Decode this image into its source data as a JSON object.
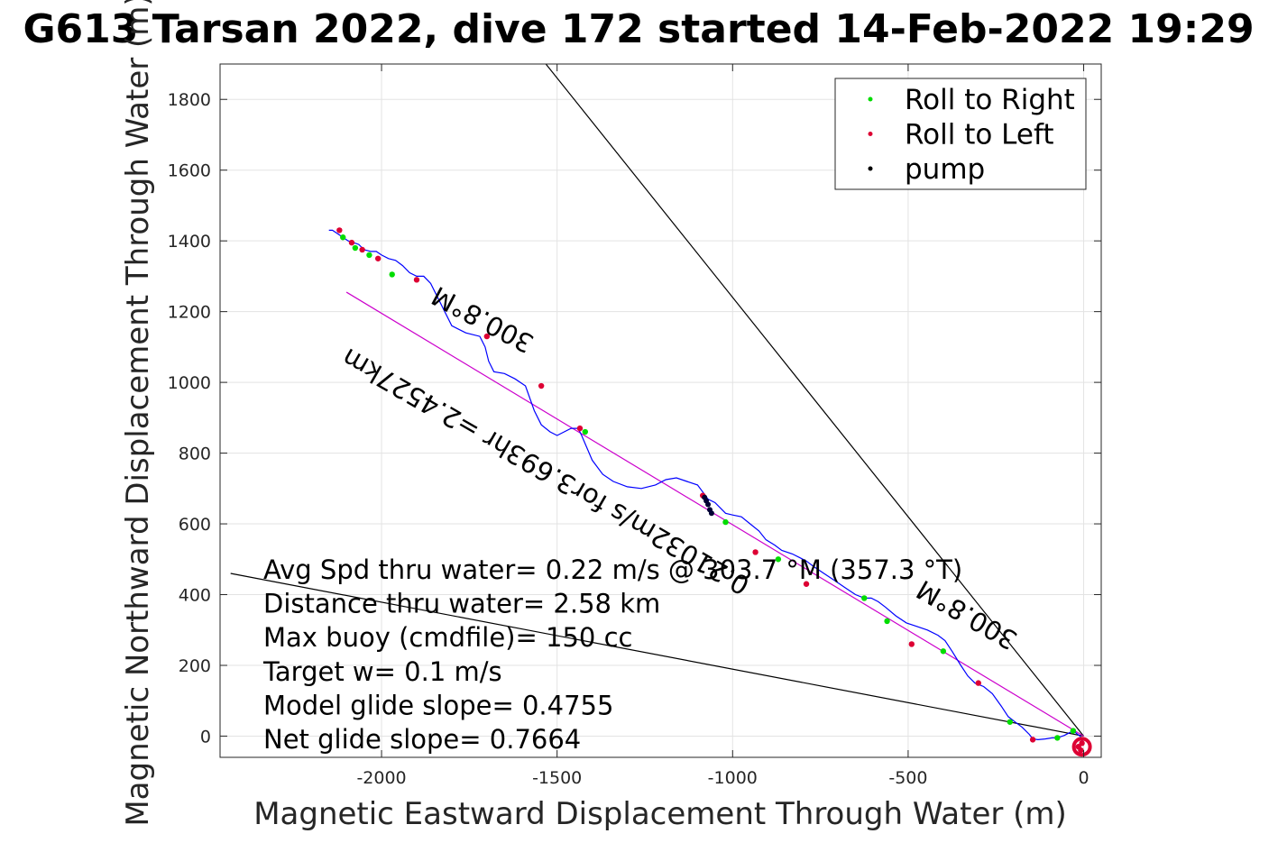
{
  "chart_data": {
    "type": "line",
    "title": "G613 Tarsan 2022, dive 172 started 14-Feb-2022 19:29",
    "xlabel": "Magnetic Eastward Displacement Through Water (m)",
    "ylabel": "Magnetic Northward Displacement Through Water (m)",
    "xlim": [
      -2460,
      50
    ],
    "ylim": [
      -60,
      1900
    ],
    "xticks": [
      -2000,
      -1500,
      -1000,
      -500,
      0
    ],
    "yticks": [
      0,
      200,
      400,
      600,
      800,
      1000,
      1200,
      1400,
      1600,
      1800
    ],
    "grid": true,
    "legend_position": "top-right",
    "legend": [
      {
        "label": "Roll to Right",
        "color": "#00dd00"
      },
      {
        "label": "Roll to Left",
        "color": "#dd0033"
      },
      {
        "label": "pump",
        "color": "#000000"
      }
    ],
    "track": {
      "color": "#0000ff",
      "x": [
        0,
        -10,
        -30,
        -55,
        -75,
        -90,
        -110,
        -130,
        -145,
        -155,
        -175,
        -195,
        -215,
        -235,
        -260,
        -285,
        -310,
        -330,
        -350,
        -375,
        -395,
        -415,
        -445,
        -475,
        -505,
        -535,
        -565,
        -585,
        -605,
        -625,
        -650,
        -680,
        -710,
        -740,
        -770,
        -790,
        -810,
        -830,
        -860,
        -880,
        -905,
        -925,
        -950,
        -975,
        -1000,
        -1020,
        -1050,
        -1070,
        -1085,
        -1100,
        -1130,
        -1160,
        -1190,
        -1220,
        -1260,
        -1300,
        -1340,
        -1370,
        -1400,
        -1430,
        -1440,
        -1460,
        -1500,
        -1520,
        -1545,
        -1565,
        -1590,
        -1620,
        -1650,
        -1680,
        -1695,
        -1705,
        -1720,
        -1760,
        -1800,
        -1830,
        -1860,
        -1880,
        -1900,
        -1920,
        -1940,
        -1960,
        -1980,
        -2000,
        -2015,
        -2030,
        -2050,
        -2065,
        -2080,
        -2095,
        -2110,
        -2125,
        -2140,
        -2150
      ],
      "y": [
        -20,
        0,
        15,
        2,
        -5,
        -5,
        -8,
        -10,
        -8,
        5,
        25,
        40,
        55,
        85,
        120,
        140,
        150,
        170,
        200,
        240,
        270,
        285,
        300,
        310,
        320,
        340,
        365,
        380,
        390,
        390,
        400,
        420,
        440,
        460,
        480,
        495,
        505,
        515,
        525,
        540,
        555,
        580,
        600,
        620,
        625,
        630,
        660,
        670,
        690,
        710,
        720,
        730,
        725,
        710,
        700,
        705,
        720,
        740,
        780,
        850,
        870,
        870,
        850,
        860,
        880,
        920,
        990,
        1010,
        1025,
        1030,
        1060,
        1100,
        1130,
        1140,
        1160,
        1220,
        1280,
        1300,
        1300,
        1310,
        1330,
        1345,
        1350,
        1360,
        1370,
        1370,
        1375,
        1390,
        1395,
        1400,
        1410,
        1420,
        1430,
        1430
      ]
    },
    "markers": {
      "roll_right": [
        [
          -30,
          15
        ],
        [
          -75,
          -5
        ],
        [
          -210,
          40
        ],
        [
          -400,
          240
        ],
        [
          -560,
          325
        ],
        [
          -625,
          390
        ],
        [
          -870,
          500
        ],
        [
          -1020,
          605
        ],
        [
          -1420,
          860
        ],
        [
          -1970,
          1305
        ],
        [
          -2035,
          1360
        ],
        [
          -2075,
          1380
        ],
        [
          -2110,
          1410
        ]
      ],
      "roll_left": [
        [
          -8,
          -40
        ],
        [
          -15,
          -30
        ],
        [
          -5,
          -20
        ],
        [
          -145,
          -10
        ],
        [
          -300,
          150
        ],
        [
          -490,
          260
        ],
        [
          -790,
          430
        ],
        [
          -935,
          520
        ],
        [
          -1085,
          680
        ],
        [
          -1435,
          870
        ],
        [
          -1545,
          990
        ],
        [
          -1700,
          1130
        ],
        [
          -1900,
          1290
        ],
        [
          -2010,
          1350
        ],
        [
          -2055,
          1375
        ],
        [
          -2085,
          1395
        ],
        [
          -2120,
          1430
        ]
      ],
      "pump": [
        [
          -1065,
          640
        ],
        [
          -1070,
          655
        ],
        [
          -1075,
          665
        ],
        [
          -1080,
          675
        ],
        [
          -1060,
          630
        ]
      ]
    },
    "reference_lines": [
      {
        "name": "heading line steep",
        "color": "#000000",
        "x": [
          0,
          -1540
        ],
        "y": [
          0,
          1910
        ]
      },
      {
        "name": "heading line shallow",
        "color": "#000000",
        "x": [
          0,
          -2430
        ],
        "y": [
          0,
          460
        ]
      },
      {
        "name": "glide line",
        "color": "#cc00cc",
        "x": [
          0,
          -2100
        ],
        "y": [
          0,
          1255
        ]
      }
    ],
    "annotations": [
      {
        "text": "300.8°M",
        "x": -1700,
        "y": 1200,
        "angle": 28
      },
      {
        "text": "0.21032m/s for3.693hr =2.4527km",
        "x": -1520,
        "y": 770,
        "angle": 30
      },
      {
        "text": "300.8°M",
        "x": -320,
        "y": 365,
        "angle": 30
      }
    ],
    "stats": [
      "Avg Spd thru water=  0.22 m/s @ 303.7 °M (357.3 °T)",
      "Distance thru water=  2.58 km",
      "Max buoy (cmdfile)= 150 cc",
      "Target w= 0.1 m/s",
      "Model glide slope= 0.4755",
      "Net glide slope= 0.7664"
    ]
  }
}
